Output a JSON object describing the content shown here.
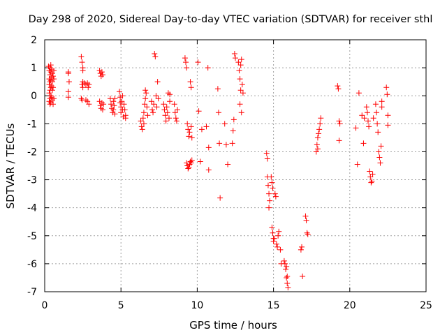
{
  "chart_data": {
    "type": "scatter",
    "title": "Day 298 of 2020, Sidereal Day-to-day VTEC variation (SDTVAR) for receiver sthl",
    "xlabel": "GPS time / hours",
    "ylabel": "SDTVAR / TECUs",
    "xlim": [
      0,
      25
    ],
    "ylim": [
      -7,
      2
    ],
    "xticks": [
      0,
      5,
      10,
      15,
      20,
      25
    ],
    "yticks": [
      -7,
      -6,
      -5,
      -4,
      -3,
      -2,
      -1,
      0,
      1,
      2
    ],
    "grid": true,
    "marker": "+",
    "series": [
      {
        "name": "SDTVAR",
        "color": "#ff0000",
        "points": [
          [
            0.25,
            1.05
          ],
          [
            0.3,
            0.9
          ],
          [
            0.3,
            0.6
          ],
          [
            0.3,
            0.4
          ],
          [
            0.3,
            0.1
          ],
          [
            0.3,
            -0.2
          ],
          [
            0.35,
            1.0
          ],
          [
            0.35,
            0.75
          ],
          [
            0.35,
            0.5
          ],
          [
            0.35,
            0.2
          ],
          [
            0.35,
            -0.1
          ],
          [
            0.35,
            -0.3
          ],
          [
            0.4,
            1.1
          ],
          [
            0.4,
            0.85
          ],
          [
            0.4,
            0.55
          ],
          [
            0.4,
            0.3
          ],
          [
            0.4,
            0.0
          ],
          [
            0.4,
            -0.25
          ],
          [
            0.45,
            0.95
          ],
          [
            0.45,
            0.65
          ],
          [
            0.45,
            0.35
          ],
          [
            0.45,
            -0.05
          ],
          [
            0.5,
            0.8
          ],
          [
            0.5,
            0.5
          ],
          [
            0.5,
            0.2
          ],
          [
            0.5,
            -0.15
          ],
          [
            0.55,
            0.7
          ],
          [
            0.55,
            0.3
          ],
          [
            0.55,
            -0.3
          ],
          [
            0.6,
            0.6
          ],
          [
            0.6,
            0.9
          ],
          [
            0.6,
            -0.1
          ],
          [
            1.55,
            0.85
          ],
          [
            1.55,
            0.8
          ],
          [
            1.6,
            0.5
          ],
          [
            1.55,
            0.15
          ],
          [
            1.55,
            -0.05
          ],
          [
            2.4,
            1.4
          ],
          [
            2.45,
            1.2
          ],
          [
            2.5,
            1.0
          ],
          [
            2.5,
            0.9
          ],
          [
            2.45,
            0.4
          ],
          [
            2.5,
            0.3
          ],
          [
            2.4,
            -0.1
          ],
          [
            2.45,
            -0.15
          ],
          [
            2.5,
            0.5
          ],
          [
            2.6,
            0.45
          ],
          [
            2.7,
            0.4
          ],
          [
            2.7,
            -0.15
          ],
          [
            2.8,
            0.45
          ],
          [
            2.85,
            0.3
          ],
          [
            2.8,
            -0.2
          ],
          [
            2.9,
            0.4
          ],
          [
            2.9,
            -0.3
          ],
          [
            3.6,
            0.9
          ],
          [
            3.65,
            0.8
          ],
          [
            3.7,
            0.7
          ],
          [
            3.75,
            0.85
          ],
          [
            3.8,
            0.75
          ],
          [
            3.6,
            -0.2
          ],
          [
            3.65,
            -0.35
          ],
          [
            3.7,
            -0.45
          ],
          [
            3.75,
            -0.25
          ],
          [
            3.8,
            -0.5
          ],
          [
            3.85,
            -0.3
          ],
          [
            4.3,
            -0.1
          ],
          [
            4.35,
            -0.3
          ],
          [
            4.4,
            -0.45
          ],
          [
            4.45,
            -0.6
          ],
          [
            4.5,
            -0.2
          ],
          [
            4.5,
            -0.5
          ],
          [
            4.55,
            -0.35
          ],
          [
            4.6,
            -0.65
          ],
          [
            4.6,
            -0.1
          ],
          [
            4.9,
            0.15
          ],
          [
            4.95,
            -0.05
          ],
          [
            4.95,
            -0.25
          ],
          [
            5.0,
            -0.4
          ],
          [
            5.0,
            -0.6
          ],
          [
            5.05,
            -0.2
          ],
          [
            5.1,
            -0.5
          ],
          [
            5.1,
            0.0
          ],
          [
            5.15,
            -0.75
          ],
          [
            5.2,
            -0.3
          ],
          [
            5.25,
            -0.5
          ],
          [
            5.3,
            -0.7
          ],
          [
            5.3,
            -0.8
          ],
          [
            6.3,
            -0.9
          ],
          [
            6.35,
            -1.1
          ],
          [
            6.4,
            -1.2
          ],
          [
            6.45,
            -0.8
          ],
          [
            6.5,
            -1.0
          ],
          [
            6.5,
            -0.6
          ],
          [
            6.55,
            -0.3
          ],
          [
            6.6,
            -0.1
          ],
          [
            6.65,
            0.1
          ],
          [
            6.7,
            -0.4
          ],
          [
            6.75,
            -0.7
          ],
          [
            6.6,
            0.2
          ],
          [
            7.0,
            -0.2
          ],
          [
            7.05,
            -0.5
          ],
          [
            7.1,
            -0.6
          ],
          [
            7.15,
            -0.3
          ],
          [
            7.2,
            1.5
          ],
          [
            7.25,
            1.4
          ],
          [
            7.3,
            0.0
          ],
          [
            7.35,
            -0.4
          ],
          [
            7.4,
            0.5
          ],
          [
            7.45,
            -0.1
          ],
          [
            7.8,
            -0.3
          ],
          [
            7.85,
            -0.5
          ],
          [
            7.9,
            -0.7
          ],
          [
            7.95,
            -0.9
          ],
          [
            8.0,
            -0.4
          ],
          [
            8.05,
            -0.6
          ],
          [
            8.1,
            0.1
          ],
          [
            8.15,
            -0.8
          ],
          [
            8.2,
            -0.2
          ],
          [
            8.2,
            0.05
          ],
          [
            8.5,
            -0.3
          ],
          [
            8.55,
            -0.6
          ],
          [
            8.6,
            -0.8
          ],
          [
            8.65,
            -0.9
          ],
          [
            8.7,
            -0.5
          ],
          [
            9.2,
            1.35
          ],
          [
            9.25,
            1.2
          ],
          [
            9.3,
            1.0
          ],
          [
            9.35,
            -1.0
          ],
          [
            9.4,
            -1.2
          ],
          [
            9.45,
            -1.45
          ],
          [
            9.5,
            -1.3
          ],
          [
            9.55,
            0.5
          ],
          [
            9.6,
            0.3
          ],
          [
            9.6,
            -1.1
          ],
          [
            9.65,
            -1.5
          ],
          [
            9.3,
            -2.4
          ],
          [
            9.35,
            -2.5
          ],
          [
            9.4,
            -2.6
          ],
          [
            9.45,
            -2.55
          ],
          [
            9.5,
            -2.45
          ],
          [
            9.55,
            -2.35
          ],
          [
            9.6,
            -2.4
          ],
          [
            9.65,
            -2.3
          ],
          [
            10.05,
            1.2
          ],
          [
            10.1,
            -0.55
          ],
          [
            10.2,
            -2.35
          ],
          [
            10.3,
            -1.2
          ],
          [
            10.6,
            -1.1
          ],
          [
            10.7,
            1.0
          ],
          [
            10.75,
            -1.85
          ],
          [
            10.75,
            -2.65
          ],
          [
            11.35,
            0.25
          ],
          [
            11.4,
            -0.6
          ],
          [
            11.45,
            -1.7
          ],
          [
            11.5,
            -3.65
          ],
          [
            11.9,
            -1.75
          ],
          [
            12.0,
            -2.45
          ],
          [
            11.8,
            -1.0
          ],
          [
            12.3,
            -1.7
          ],
          [
            12.35,
            -1.25
          ],
          [
            12.4,
            -0.85
          ],
          [
            12.45,
            1.5
          ],
          [
            12.5,
            1.35
          ],
          [
            12.7,
            1.2
          ],
          [
            12.75,
            0.9
          ],
          [
            12.8,
            0.6
          ],
          [
            12.85,
            1.1
          ],
          [
            12.9,
            1.3
          ],
          [
            12.95,
            0.4
          ],
          [
            13.0,
            0.1
          ],
          [
            12.8,
            -0.3
          ],
          [
            12.9,
            -0.6
          ],
          [
            12.85,
            0.2
          ],
          [
            14.55,
            -2.05
          ],
          [
            14.6,
            -2.25
          ],
          [
            14.6,
            -2.9
          ],
          [
            14.65,
            -3.2
          ],
          [
            14.7,
            -3.5
          ],
          [
            14.75,
            -3.75
          ],
          [
            14.7,
            -4.0
          ],
          [
            14.85,
            -2.9
          ],
          [
            14.9,
            -3.1
          ],
          [
            14.95,
            -3.3
          ],
          [
            14.9,
            -4.7
          ],
          [
            14.95,
            -4.9
          ],
          [
            15.0,
            -5.1
          ],
          [
            15.0,
            -5.2
          ],
          [
            15.05,
            -5.1
          ],
          [
            15.1,
            -3.5
          ],
          [
            15.15,
            -3.6
          ],
          [
            15.2,
            -5.3
          ],
          [
            15.25,
            -5.4
          ],
          [
            15.3,
            -5.0
          ],
          [
            15.35,
            -4.85
          ],
          [
            15.45,
            -5.5
          ],
          [
            15.5,
            -6.0
          ],
          [
            15.7,
            -5.9
          ],
          [
            15.75,
            -6.0
          ],
          [
            15.8,
            -6.2
          ],
          [
            15.85,
            -6.5
          ],
          [
            15.9,
            -6.7
          ],
          [
            15.95,
            -6.85
          ],
          [
            15.9,
            -6.45
          ],
          [
            15.85,
            -6.1
          ],
          [
            16.8,
            -5.5
          ],
          [
            16.85,
            -5.4
          ],
          [
            16.9,
            -6.45
          ],
          [
            17.1,
            -4.3
          ],
          [
            17.15,
            -4.45
          ],
          [
            17.2,
            -4.9
          ],
          [
            17.25,
            -4.95
          ],
          [
            17.8,
            -2.0
          ],
          [
            17.85,
            -1.75
          ],
          [
            17.9,
            -1.5
          ],
          [
            17.95,
            -1.35
          ],
          [
            18.0,
            -1.2
          ],
          [
            18.05,
            -1.0
          ],
          [
            18.1,
            -0.8
          ],
          [
            17.9,
            -1.9
          ],
          [
            19.2,
            0.35
          ],
          [
            19.25,
            0.25
          ],
          [
            19.3,
            -0.9
          ],
          [
            19.35,
            -1.0
          ],
          [
            19.3,
            -1.6
          ],
          [
            20.4,
            -1.15
          ],
          [
            20.5,
            -2.45
          ],
          [
            20.6,
            0.1
          ],
          [
            20.8,
            -0.7
          ],
          [
            20.9,
            -1.7
          ],
          [
            20.95,
            -0.8
          ],
          [
            21.1,
            -0.4
          ],
          [
            21.15,
            -0.6
          ],
          [
            21.2,
            -0.9
          ],
          [
            21.25,
            -1.1
          ],
          [
            21.3,
            -2.7
          ],
          [
            21.35,
            -2.9
          ],
          [
            21.4,
            -3.1
          ],
          [
            21.45,
            -3.05
          ],
          [
            21.5,
            -2.8
          ],
          [
            21.55,
            -0.8
          ],
          [
            21.7,
            -0.3
          ],
          [
            21.75,
            -0.6
          ],
          [
            21.8,
            -1.0
          ],
          [
            21.85,
            -1.3
          ],
          [
            21.9,
            -2.0
          ],
          [
            21.95,
            -2.2
          ],
          [
            22.0,
            -2.4
          ],
          [
            22.05,
            -1.8
          ],
          [
            22.1,
            -0.4
          ],
          [
            22.1,
            -0.2
          ],
          [
            22.4,
            0.3
          ],
          [
            22.45,
            0.05
          ],
          [
            22.5,
            -0.7
          ],
          [
            22.5,
            -1.05
          ]
        ]
      }
    ]
  }
}
